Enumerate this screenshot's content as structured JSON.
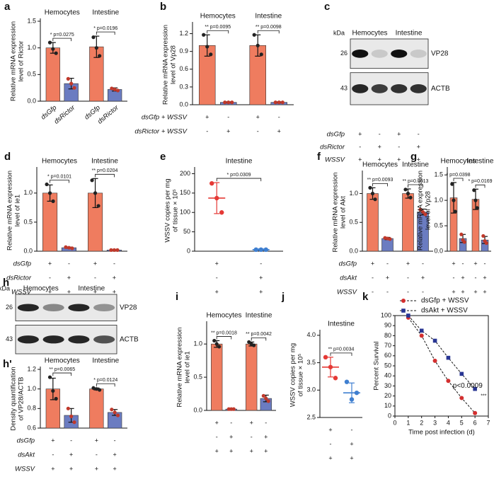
{
  "chart_data": [
    {
      "type": "bar",
      "label": "a",
      "groups": [
        "Hemocytes",
        "Intestine"
      ],
      "y_label": [
        "Relative mRNA expression",
        "level of Rictor"
      ],
      "ylim": [
        0,
        1.5
      ],
      "yticks": [
        {
          "value": 0,
          "label": "0.0"
        },
        0.5,
        {
          "value": 1,
          "label": "1.0"
        },
        1.5
      ],
      "categories": [
        "dsGfp",
        "dsRictor",
        "dsGfp",
        "dsRictor"
      ],
      "values": [
        1.0,
        0.33,
        1.02,
        0.22
      ],
      "errors": [
        0.1,
        0.1,
        0.2,
        0.03
      ],
      "points": [
        [
          1.1,
          0.98,
          0.9
        ],
        [
          0.42,
          0.33,
          0.25
        ],
        [
          1.2,
          1.0,
          0.85
        ],
        [
          0.24,
          0.22,
          0.2
        ]
      ],
      "colors": [
        "#ef7c5f",
        "#6b7cc1",
        "#ef7c5f",
        "#6b7cc1"
      ],
      "point_colors": [
        "#222222",
        "#c0392b",
        "#222222",
        "#c0392b"
      ],
      "comparisons": [
        "* p=0.0275",
        "* p=0.0196"
      ]
    },
    {
      "type": "bar",
      "label": "b",
      "groups": [
        "Hemocytes",
        "Intestine"
      ],
      "y_label": [
        "Relative mRNA expression",
        "level of Vp28"
      ],
      "ylim": [
        0,
        1.35
      ],
      "yticks": [
        {
          "value": 0,
          "label": "0.0"
        },
        0.3,
        0.6,
        0.9,
        1.2
      ],
      "values": [
        1.0,
        0.04,
        1.0,
        0.04
      ],
      "errors": [
        0.18,
        0.01,
        0.18,
        0.01
      ],
      "points": [
        [
          1.18,
          0.98,
          0.85
        ],
        [
          0.04,
          0.04,
          0.04
        ],
        [
          1.18,
          1.0,
          0.85
        ],
        [
          0.04,
          0.04,
          0.04
        ]
      ],
      "colors": [
        "#ef7c5f",
        "#6b7cc1",
        "#ef7c5f",
        "#6b7cc1"
      ],
      "point_colors": [
        "#222222",
        "#c0392b",
        "#222222",
        "#c0392b"
      ],
      "comparisons": [
        "** p=0.0095",
        "** p=0.0098"
      ],
      "conditions": [
        {
          "name": "dsGfp + WSSV",
          "signs": [
            "+",
            "-",
            "+",
            "-"
          ]
        },
        {
          "name": "dsRictor + WSSV",
          "signs": [
            "-",
            "+",
            "-",
            "+"
          ]
        }
      ]
    },
    {
      "type": "blot",
      "label": "c",
      "unit": "kDa",
      "markers": [
        26,
        43
      ],
      "bands": [
        "VP28",
        "ACTB"
      ],
      "groups": [
        "Hemocytes",
        "Intestine"
      ],
      "conditions": [
        {
          "name": "dsGfp",
          "signs": [
            "+",
            "-",
            "+",
            "-"
          ]
        },
        {
          "name": "dsRictor",
          "signs": [
            "-",
            "+",
            "-",
            "+"
          ]
        },
        {
          "name": "WSSV",
          "signs": [
            "+",
            "+",
            "+",
            "+"
          ]
        }
      ]
    },
    {
      "type": "bar",
      "label": "d",
      "groups": [
        "Hemocytes",
        "Intestine"
      ],
      "y_label": [
        "Relative mRNA expression",
        "level of ie1"
      ],
      "ylim": [
        0,
        1.4
      ],
      "yticks": [
        {
          "value": 0,
          "label": "0.0"
        },
        0.5,
        {
          "value": 1,
          "label": "1.0"
        }
      ],
      "values": [
        1.0,
        0.06,
        1.0,
        0.02
      ],
      "errors": [
        0.14,
        0.01,
        0.25,
        0.01
      ],
      "points": [
        [
          1.15,
          1.0,
          0.86
        ],
        [
          0.07,
          0.06,
          0.05
        ],
        [
          1.22,
          1.0,
          0.78
        ],
        [
          0.02,
          0.02,
          0.02
        ]
      ],
      "colors": [
        "#ef7c5f",
        "#6b7cc1",
        "#ef7c5f",
        "#6b7cc1"
      ],
      "point_colors": [
        "#222222",
        "#c0392b",
        "#222222",
        "#c0392b"
      ],
      "comparisons": [
        "* p=0.0101",
        "** p=0.0204"
      ],
      "conditions": [
        {
          "name": "dsGfp",
          "signs": [
            "+",
            "-",
            "+",
            "-"
          ]
        },
        {
          "name": "dsRictor",
          "signs": [
            "-",
            "+",
            "-",
            "+"
          ]
        },
        {
          "name": "WSSV",
          "signs": [
            "+",
            "+",
            "+",
            "+"
          ]
        }
      ]
    },
    {
      "type": "dot",
      "label": "e",
      "title": "Intestine",
      "y_label": [
        "WSSV copies per mg",
        "of tissue × 10⁵"
      ],
      "ylim": [
        0,
        210
      ],
      "yticks": [
        0,
        50,
        100,
        150,
        200
      ],
      "values": [
        137,
        4
      ],
      "errors": [
        40,
        2
      ],
      "points": [
        [
          175,
          137,
          100
        ],
        [
          4,
          4,
          4
        ]
      ],
      "colors": [
        "#e53935",
        "#3f7fd0"
      ],
      "comparisons": [
        "* p=0.0309"
      ],
      "conditions": [
        {
          "signs": [
            "+",
            "-"
          ]
        },
        {
          "signs": [
            "-",
            "+"
          ]
        },
        {
          "signs": [
            "+",
            "+"
          ]
        }
      ]
    },
    {
      "type": "bar",
      "label": "f",
      "groups": [
        "Hemocytes",
        "Intestine"
      ],
      "y_label": [
        "Relative mRNA expression",
        "level of Akt"
      ],
      "ylim": [
        0,
        1.35
      ],
      "yticks": [
        {
          "value": 0,
          "label": "0.0"
        },
        0.5,
        {
          "value": 1,
          "label": "1.0"
        }
      ],
      "values": [
        1.0,
        0.22,
        1.0,
        0.68
      ],
      "errors": [
        0.1,
        0.02,
        0.08,
        0.05
      ],
      "points": [
        [
          1.1,
          1.0,
          0.9
        ],
        [
          0.23,
          0.22,
          0.21
        ],
        [
          1.07,
          1.0,
          0.93
        ],
        [
          0.72,
          0.68,
          0.64
        ]
      ],
      "colors": [
        "#ef7c5f",
        "#6b7cc1",
        "#ef7c5f",
        "#6b7cc1"
      ],
      "point_colors": [
        "#222222",
        "#c0392b",
        "#222222",
        "#c0392b"
      ],
      "comparisons": [
        "** p=0.0093",
        "** p=0.0013"
      ],
      "conditions": [
        {
          "name": "dsGfp",
          "signs": [
            "+",
            "-",
            "+",
            "-"
          ]
        },
        {
          "name": "dsAkt",
          "signs": [
            "-",
            "+",
            "-",
            "+"
          ]
        },
        {
          "name": "WSSV",
          "signs": [
            "-",
            "-",
            "-",
            "-"
          ]
        }
      ]
    },
    {
      "type": "bar",
      "label": "g",
      "groups": [
        "Hemocytes",
        "Intestine"
      ],
      "y_label": [
        "Relative mRNA expression",
        "level of Vp28"
      ],
      "ylim": [
        0,
        1.6
      ],
      "yticks": [
        {
          "value": 0,
          "label": "0.0"
        },
        0.5,
        {
          "value": 1,
          "label": "1.0"
        },
        1.5
      ],
      "values": [
        1.05,
        0.25,
        1.02,
        0.22
      ],
      "errors": [
        0.3,
        0.08,
        0.2,
        0.07
      ],
      "points": [
        [
          1.32,
          1.0,
          0.78
        ],
        [
          0.33,
          0.22,
          0.18
        ],
        [
          1.2,
          1.0,
          0.85
        ],
        [
          0.3,
          0.2,
          0.16
        ]
      ],
      "colors": [
        "#ef7c5f",
        "#6b7cc1",
        "#ef7c5f",
        "#6b7cc1"
      ],
      "point_colors": [
        "#222222",
        "#c0392b",
        "#222222",
        "#c0392b"
      ],
      "comparisons": [
        "* p=0.0398",
        "* p=0.0169"
      ],
      "conditions": [
        {
          "signs": [
            "+",
            "-",
            "+",
            "-"
          ]
        },
        {
          "signs": [
            "-",
            "+",
            "-",
            "+"
          ]
        },
        {
          "signs": [
            "+",
            "+",
            "+",
            "+"
          ]
        }
      ]
    },
    {
      "type": "blot",
      "label": "h",
      "unit": "kDa",
      "markers": [
        26,
        43
      ],
      "bands": [
        "VP28",
        "ACTB"
      ],
      "groups": [
        "Hemocytes",
        "Intestine"
      ]
    },
    {
      "type": "bar",
      "label": "h'",
      "y_label": [
        "Density quantification",
        "of VP28/ACTB"
      ],
      "groups": [
        "Hemocytes",
        "Intestine"
      ],
      "ylim": [
        0.6,
        1.2
      ],
      "yticks": [
        0.6,
        0.8,
        {
          "value": 1,
          "label": "1.0"
        },
        1.2
      ],
      "values": [
        1.0,
        0.73,
        1.0,
        0.76
      ],
      "errors": [
        0.11,
        0.07,
        0.01,
        0.03
      ],
      "points": [
        [
          1.12,
          0.98,
          0.9
        ],
        [
          0.8,
          0.72,
          0.66
        ],
        [
          1.01,
          1.0,
          0.99
        ],
        [
          0.79,
          0.76,
          0.73
        ]
      ],
      "colors": [
        "#ef7c5f",
        "#6b7cc1",
        "#ef7c5f",
        "#6b7cc1"
      ],
      "point_colors": [
        "#222222",
        "#c0392b",
        "#222222",
        "#c0392b"
      ],
      "comparisons": [
        "** p=0.0065",
        "* p=0.0124"
      ],
      "conditions": [
        {
          "name": "dsGfp",
          "signs": [
            "+",
            "-",
            "+",
            "-"
          ]
        },
        {
          "name": "dsAkt",
          "signs": [
            "-",
            "+",
            "-",
            "+"
          ]
        },
        {
          "name": "WSSV",
          "signs": [
            "+",
            "+",
            "+",
            "+"
          ]
        }
      ]
    },
    {
      "type": "bar",
      "label": "i",
      "groups": [
        "Hemocytes",
        "Intestine"
      ],
      "y_label": [
        "Relative mRNA expression",
        "level of ie1"
      ],
      "ylim": [
        0,
        1.3
      ],
      "yticks": [
        {
          "value": 0,
          "label": "0.0"
        },
        0.5,
        {
          "value": 1,
          "label": "1.0"
        }
      ],
      "values": [
        1.0,
        0.02,
        1.0,
        0.18
      ],
      "errors": [
        0.05,
        0.01,
        0.03,
        0.05
      ],
      "points": [
        [
          1.05,
          1.0,
          0.96
        ],
        [
          0.02,
          0.02,
          0.02
        ],
        [
          1.03,
          1.0,
          0.98
        ],
        [
          0.22,
          0.18,
          0.14
        ]
      ],
      "colors": [
        "#ef7c5f",
        "#6b7cc1",
        "#ef7c5f",
        "#6b7cc1"
      ],
      "point_colors": [
        "#222222",
        "#c0392b",
        "#222222",
        "#c0392b"
      ],
      "comparisons": [
        "** p=0.0018",
        "** p=0.0042"
      ],
      "conditions": [
        {
          "signs": [
            "+",
            "-",
            "+",
            "-"
          ]
        },
        {
          "signs": [
            "-",
            "+",
            "-",
            "+"
          ]
        },
        {
          "signs": [
            "+",
            "+",
            "+",
            "+"
          ]
        }
      ]
    },
    {
      "type": "dot",
      "label": "j",
      "title": "Intestine",
      "y_label": [
        "WSSV copies per mg",
        "of tissue × 10⁵"
      ],
      "ylim": [
        2.5,
        4.05
      ],
      "yticks": [
        2.5,
        {
          "value": 3,
          "label": "3.0"
        },
        3.5,
        {
          "value": 4,
          "label": "4.0"
        }
      ],
      "values": [
        3.42,
        2.95
      ],
      "errors": [
        0.18,
        0.18
      ],
      "points": [
        [
          3.6,
          3.42,
          3.22
        ],
        [
          3.15,
          2.83,
          2.95
        ]
      ],
      "colors": [
        "#e53935",
        "#3f7fd0"
      ],
      "comparisons": [
        "** p=0.0034"
      ],
      "conditions": [
        {
          "signs": [
            "+",
            "-"
          ]
        },
        {
          "signs": [
            "-",
            "+"
          ]
        },
        {
          "signs": [
            "+",
            "+"
          ]
        }
      ]
    },
    {
      "type": "line",
      "label": "k",
      "x_label": "Time post infection (d)",
      "y_label": "Percent Survival",
      "x": [
        1,
        2,
        3,
        4,
        5,
        6
      ],
      "xlim": [
        0,
        7
      ],
      "xticks": [
        0,
        1,
        2,
        3,
        4,
        5,
        6,
        7
      ],
      "ylim": [
        0,
        100
      ],
      "yticks": [
        0,
        10,
        20,
        30,
        40,
        50,
        60,
        70,
        80,
        90,
        100
      ],
      "series": [
        {
          "name": "dsGfp + WSSV",
          "color": "#d32f2f",
          "marker": "circle",
          "values": [
            98,
            80,
            55,
            35,
            18,
            3
          ]
        },
        {
          "name": "dsAkt + WSSV",
          "color": "#283593",
          "marker": "square",
          "values": [
            100,
            85,
            75,
            58,
            42,
            27
          ]
        }
      ],
      "annotations": [
        "p<0.0009",
        "***"
      ]
    }
  ]
}
